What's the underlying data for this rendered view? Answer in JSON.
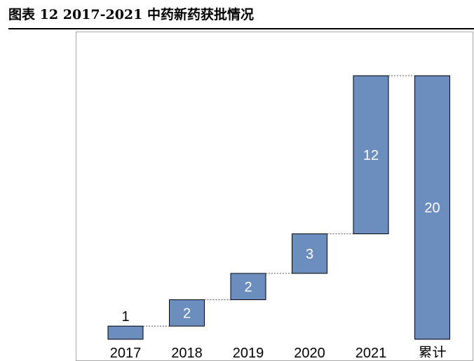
{
  "figure": {
    "label": "图表",
    "number": "12",
    "caption": "2017-2021 中药新药获批情况"
  },
  "chart_data": {
    "type": "bar",
    "subtype": "waterfall",
    "categories": [
      "2017",
      "2018",
      "2019",
      "2020",
      "2021",
      "累计"
    ],
    "values": [
      1,
      2,
      2,
      3,
      12,
      20
    ],
    "total_index": 5,
    "ylim": [
      0,
      21
    ],
    "grid": false,
    "legend": "none",
    "colors": {
      "bar": "#6c8ebf",
      "bar_stroke": "#000000",
      "connector": "#555555"
    }
  }
}
